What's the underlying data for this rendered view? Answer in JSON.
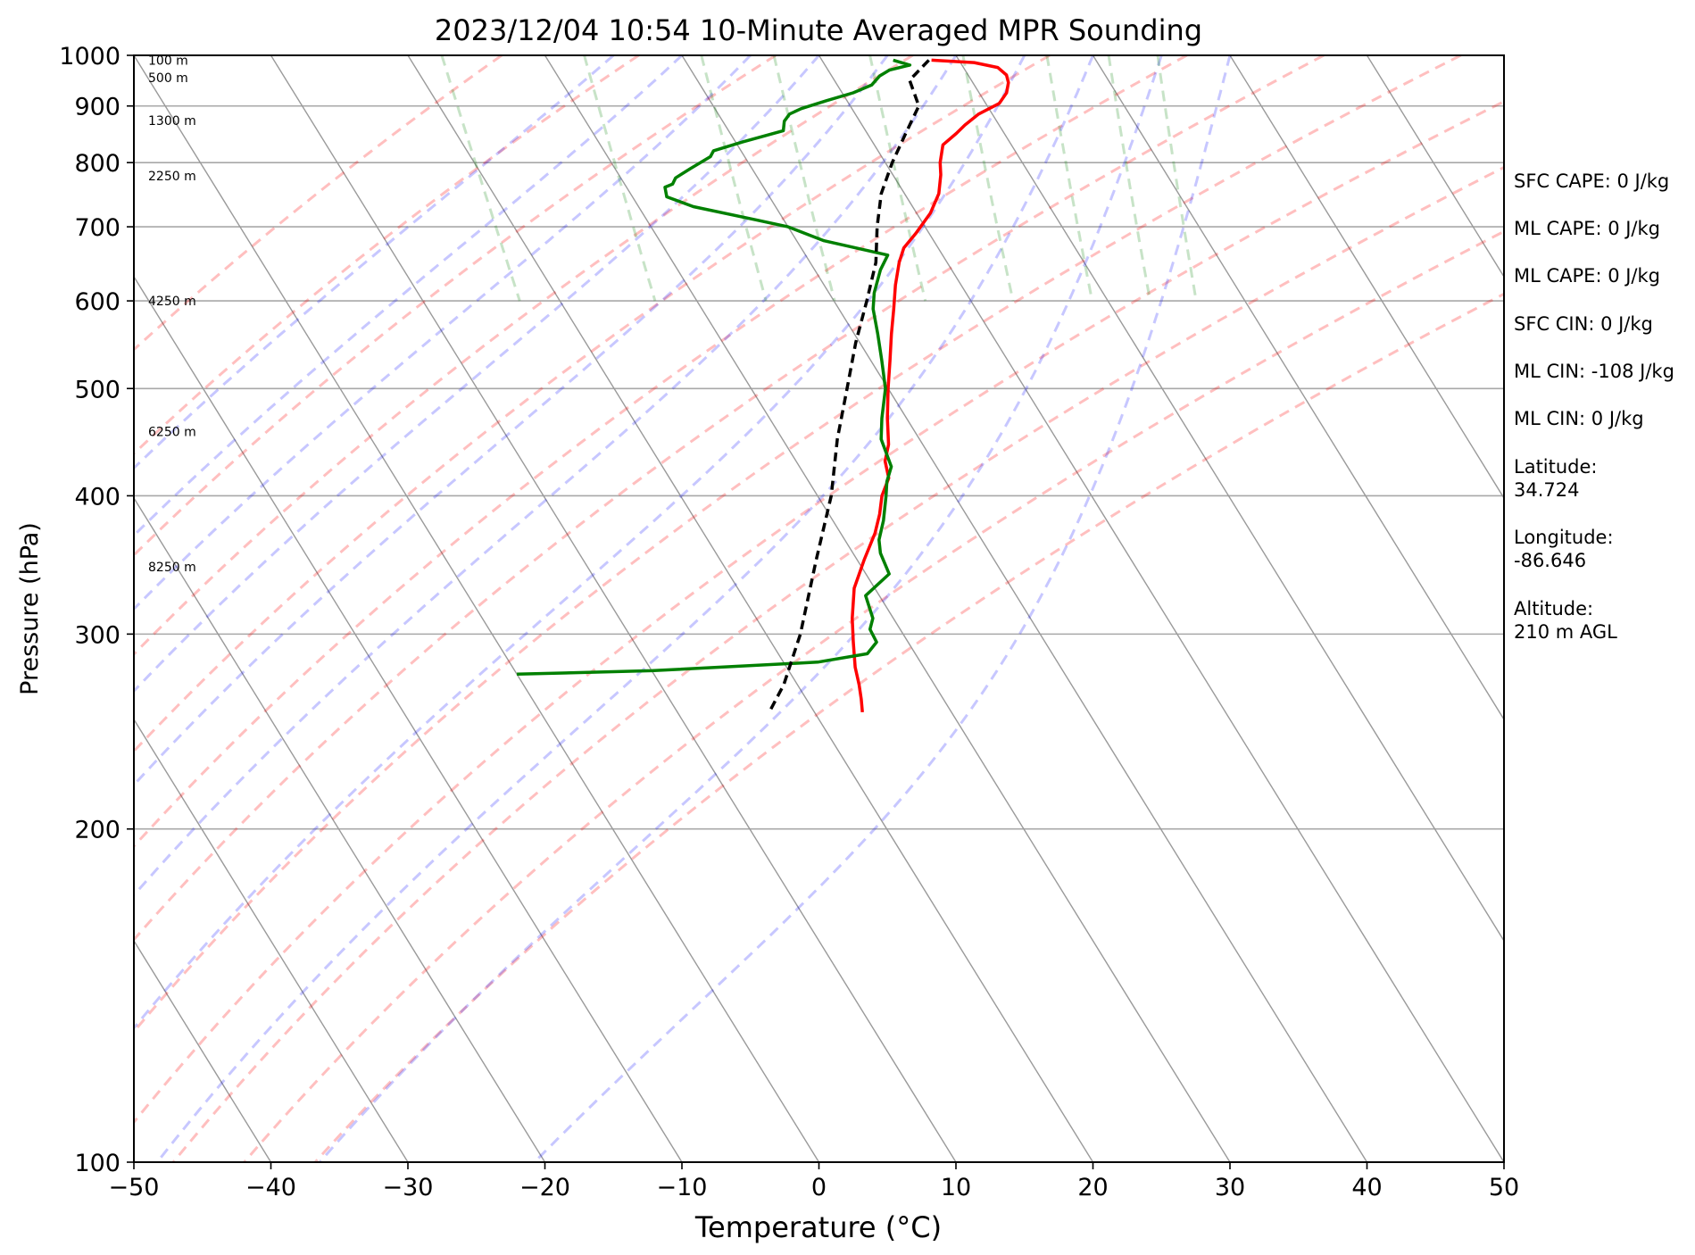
{
  "chart_data": {
    "type": "line",
    "subtype": "skew-t log-p",
    "title": "2023/12/04 10:54 10-Minute Averaged MPR Sounding",
    "xlabel": "Temperature (°C)",
    "ylabel": "Pressure (hPa)",
    "xlim": [
      -50,
      50
    ],
    "ylim": [
      1000,
      100
    ],
    "y_scale": "log",
    "x_ticks": [
      "−50",
      "−40",
      "−30",
      "−20",
      "−10",
      "0",
      "10",
      "20",
      "30",
      "40",
      "50"
    ],
    "x_tick_values": [
      -50,
      -40,
      -30,
      -20,
      -10,
      0,
      10,
      20,
      30,
      40,
      50
    ],
    "y_ticks": [
      "1000",
      "900",
      "800",
      "700",
      "600",
      "500",
      "400",
      "300",
      "200",
      "100"
    ],
    "y_tick_values": [
      1000,
      900,
      800,
      700,
      600,
      500,
      400,
      300,
      200,
      100
    ],
    "grid": true,
    "skew_per_decade_degC": 50,
    "isotherm_values": [
      -140,
      -130,
      -120,
      -110,
      -100,
      -90,
      -80,
      -70,
      -60,
      -50,
      -40,
      -30,
      -20,
      -10,
      0,
      10,
      20,
      30,
      40,
      50
    ],
    "dry_adiabat_thetas_K": [
      250,
      260,
      270,
      280,
      290,
      300,
      310,
      320,
      330,
      340,
      350,
      360
    ],
    "moist_adiabat_start_temps_C": [
      -15,
      -10,
      -5,
      0,
      5,
      10,
      15,
      20,
      25,
      30
    ],
    "mixing_ratio_gkg": [
      0.4,
      1,
      2,
      3,
      5,
      8,
      12,
      16,
      20
    ],
    "height_labels": [
      {
        "pressure": 345,
        "label": "8250 m"
      },
      {
        "pressure": 457,
        "label": "6250 m"
      },
      {
        "pressure": 600,
        "label": "4250 m"
      },
      {
        "pressure": 778,
        "label": "2250 m"
      },
      {
        "pressure": 873,
        "label": "1300 m"
      },
      {
        "pressure": 955,
        "label": "500 m"
      },
      {
        "pressure": 990,
        "label": "100 m"
      }
    ],
    "series": [
      {
        "color": "#ff0000",
        "points": [
          [
            990,
            8.0
          ],
          [
            985,
            11.0
          ],
          [
            975,
            12.5
          ],
          [
            960,
            12.8
          ],
          [
            945,
            12.6
          ],
          [
            925,
            12.0
          ],
          [
            905,
            11.0
          ],
          [
            885,
            9.0
          ],
          [
            865,
            7.5
          ],
          [
            850,
            6.5
          ],
          [
            830,
            5.0
          ],
          [
            800,
            4.0
          ],
          [
            780,
            3.5
          ],
          [
            750,
            2.5
          ],
          [
            720,
            1.0
          ],
          [
            690,
            -1.0
          ],
          [
            670,
            -2.5
          ],
          [
            650,
            -3.5
          ],
          [
            620,
            -4.8
          ],
          [
            590,
            -6.0
          ],
          [
            560,
            -7.3
          ],
          [
            530,
            -8.6
          ],
          [
            500,
            -10.0
          ],
          [
            470,
            -11.4
          ],
          [
            445,
            -12.5
          ],
          [
            430,
            -13.5
          ],
          [
            415,
            -14.0
          ],
          [
            400,
            -15.3
          ],
          [
            385,
            -16.3
          ],
          [
            370,
            -17.5
          ],
          [
            350,
            -19.5
          ],
          [
            330,
            -21.5
          ],
          [
            310,
            -23.0
          ],
          [
            295,
            -24.0
          ],
          [
            280,
            -25.0
          ],
          [
            270,
            -25.5
          ],
          [
            262,
            -26.0
          ],
          [
            255,
            -26.5
          ]
        ]
      },
      {
        "color": "#008000",
        "points": [
          [
            990,
            5.2
          ],
          [
            980,
            6.2
          ],
          [
            970,
            4.5
          ],
          [
            958,
            3.5
          ],
          [
            940,
            2.5
          ],
          [
            925,
            0.8
          ],
          [
            910,
            -1.5
          ],
          [
            895,
            -3.7
          ],
          [
            885,
            -4.8
          ],
          [
            872,
            -5.5
          ],
          [
            855,
            -6.0
          ],
          [
            835,
            -9.5
          ],
          [
            820,
            -12.0
          ],
          [
            810,
            -12.5
          ],
          [
            790,
            -14.5
          ],
          [
            775,
            -16.0
          ],
          [
            765,
            -16.5
          ],
          [
            760,
            -17.2
          ],
          [
            745,
            -17.5
          ],
          [
            730,
            -16.0
          ],
          [
            710,
            -12.0
          ],
          [
            700,
            -10.0
          ],
          [
            680,
            -8.0
          ],
          [
            660,
            -4.0
          ],
          [
            640,
            -5.2
          ],
          [
            610,
            -6.7
          ],
          [
            590,
            -7.5
          ],
          [
            560,
            -8.3
          ],
          [
            530,
            -9.2
          ],
          [
            500,
            -10.2
          ],
          [
            470,
            -11.8
          ],
          [
            450,
            -12.8
          ],
          [
            425,
            -13.3
          ],
          [
            412,
            -14.3
          ],
          [
            400,
            -15.0
          ],
          [
            380,
            -16.3
          ],
          [
            365,
            -17.5
          ],
          [
            355,
            -18.0
          ],
          [
            340,
            -18.3
          ],
          [
            325,
            -21.0
          ],
          [
            310,
            -21.5
          ],
          [
            303,
            -22.2
          ],
          [
            295,
            -22.3
          ],
          [
            288,
            -23.5
          ],
          [
            283,
            -27.5
          ],
          [
            278,
            -40.0
          ],
          [
            276,
            -50.0
          ]
        ]
      },
      {
        "color": "#000000",
        "dashed": true,
        "points": [
          [
            990,
            7.8
          ],
          [
            960,
            6.1
          ],
          [
            950,
            5.5
          ],
          [
            900,
            5.0
          ],
          [
            850,
            2.8
          ],
          [
            800,
            0.5
          ],
          [
            750,
            -1.7
          ],
          [
            700,
            -3.5
          ],
          [
            650,
            -5.2
          ],
          [
            600,
            -7.6
          ],
          [
            550,
            -10.3
          ],
          [
            500,
            -13.0
          ],
          [
            450,
            -16.0
          ],
          [
            400,
            -19.0
          ],
          [
            350,
            -23.0
          ],
          [
            300,
            -27.5
          ],
          [
            270,
            -31.0
          ],
          [
            255,
            -33.3
          ]
        ]
      }
    ]
  },
  "info_panel": {
    "sfc_cape": "SFC CAPE: 0 J/kg",
    "ml_cape": "ML CAPE: 0 J/kg",
    "mu_cape": "ML CAPE: 0 J/kg",
    "sfc_cin": "SFC CIN: 0 J/kg",
    "ml_cin": "ML CIN: -108 J/kg",
    "mu_cin": "ML CIN: 0 J/kg",
    "latitude": "Latitude:\n34.724",
    "longitude": "Longitude:\n-86.646",
    "altitude": "Altitude:\n210 m AGL"
  }
}
